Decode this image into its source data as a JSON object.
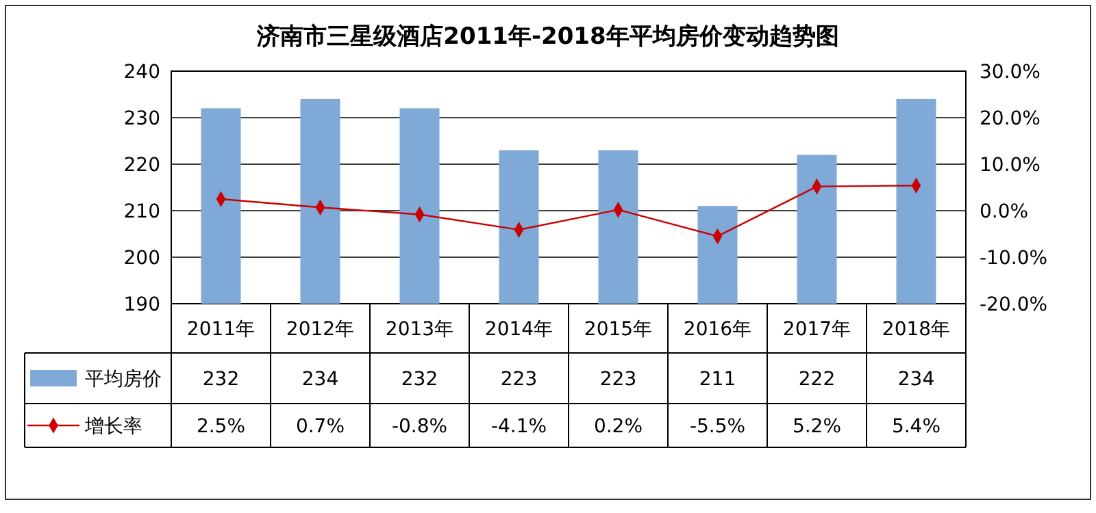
{
  "chart_data": {
    "type": "bar",
    "title": "济南市三星级酒店2011年-2018年平均房价变动趋势图",
    "categories": [
      "2011年",
      "2012年",
      "2013年",
      "2014年",
      "2015年",
      "2016年",
      "2017年",
      "2018年"
    ],
    "series": [
      {
        "name": "平均房价",
        "color": "#7fa9d6",
        "values": [
          232,
          234,
          232,
          223,
          223,
          211,
          222,
          234
        ],
        "value_labels": [
          "232",
          "234",
          "232",
          "223",
          "223",
          "211",
          "222",
          "234"
        ]
      },
      {
        "name": "增长率",
        "type": "line",
        "axis": "y2",
        "color": "#cc0000",
        "marker": "diamond",
        "values": [
          2.5,
          0.7,
          -0.8,
          -4.1,
          0.2,
          -5.5,
          5.2,
          5.4
        ],
        "value_labels": [
          "2.5%",
          "0.7%",
          "-0.8%",
          "-4.1%",
          "0.2%",
          "-5.5%",
          "5.2%",
          "5.4%"
        ]
      }
    ],
    "ylim": [
      190,
      240
    ],
    "yticks": [
      190,
      200,
      210,
      220,
      230,
      240
    ],
    "y2lim": [
      -20,
      30
    ],
    "y2ticks": [
      {
        "value": -20,
        "label": "-20.0%"
      },
      {
        "value": -10,
        "label": "-10.0%"
      },
      {
        "value": 0,
        "label": "0.0%"
      },
      {
        "value": 10,
        "label": "10.0%"
      },
      {
        "value": 20,
        "label": "20.0%"
      },
      {
        "value": 30,
        "label": "30.0%"
      }
    ],
    "grid": "y",
    "legend": "bottom"
  }
}
